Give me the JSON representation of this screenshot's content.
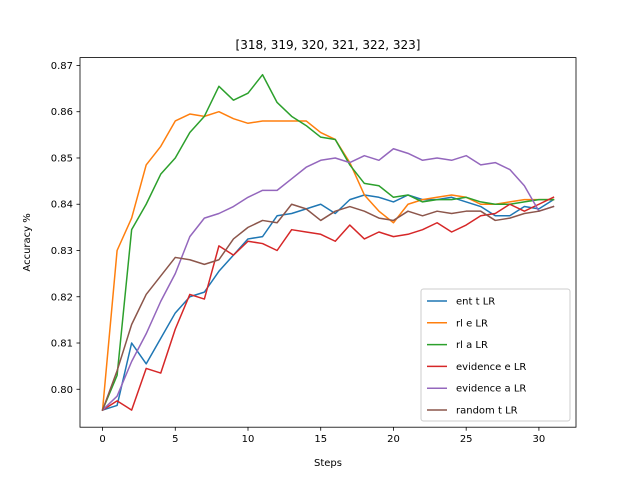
{
  "chart_data": {
    "type": "line",
    "title": "[318, 319, 320, 321, 322, 323]",
    "xlabel": "Steps",
    "ylabel": "Accuracy %",
    "xlim": [
      -1.55,
      32.55
    ],
    "ylim": [
      0.7918,
      0.8717
    ],
    "xticks": [
      0,
      5,
      10,
      15,
      20,
      25,
      30
    ],
    "yticks": [
      0.8,
      0.81,
      0.82,
      0.83,
      0.84,
      0.85,
      0.86,
      0.87
    ],
    "ytick_labels": [
      "0.80",
      "0.81",
      "0.82",
      "0.83",
      "0.84",
      "0.85",
      "0.86",
      "0.87"
    ],
    "grid": false,
    "legend_position": "lower right",
    "x": [
      0,
      1,
      2,
      3,
      4,
      5,
      6,
      7,
      8,
      9,
      10,
      11,
      12,
      13,
      14,
      15,
      16,
      17,
      18,
      19,
      20,
      21,
      22,
      23,
      24,
      25,
      26,
      27,
      28,
      29,
      30,
      31
    ],
    "series": [
      {
        "name": "ent t LR",
        "color": "#1f77b4",
        "values": [
          0.7955,
          0.7965,
          0.81,
          0.8055,
          0.811,
          0.8165,
          0.82,
          0.821,
          0.8255,
          0.829,
          0.8325,
          0.833,
          0.8375,
          0.838,
          0.839,
          0.84,
          0.838,
          0.841,
          0.842,
          0.8415,
          0.8405,
          0.842,
          0.841,
          0.841,
          0.8415,
          0.8405,
          0.8395,
          0.8375,
          0.8375,
          0.8395,
          0.839,
          0.841
        ]
      },
      {
        "name": "rl e LR",
        "color": "#ff7f0e",
        "values": [
          0.7955,
          0.83,
          0.837,
          0.8485,
          0.8525,
          0.858,
          0.8595,
          0.859,
          0.86,
          0.8585,
          0.8575,
          0.858,
          0.858,
          0.858,
          0.858,
          0.8555,
          0.854,
          0.849,
          0.842,
          0.8385,
          0.836,
          0.84,
          0.841,
          0.8415,
          0.842,
          0.8415,
          0.84,
          0.84,
          0.8405,
          0.841,
          0.841,
          0.841
        ]
      },
      {
        "name": "rl a LR",
        "color": "#2ca02c",
        "values": [
          0.7955,
          0.803,
          0.8345,
          0.84,
          0.8465,
          0.85,
          0.8555,
          0.859,
          0.8655,
          0.8625,
          0.864,
          0.868,
          0.862,
          0.859,
          0.857,
          0.8545,
          0.854,
          0.8485,
          0.8445,
          0.844,
          0.8415,
          0.842,
          0.8405,
          0.841,
          0.841,
          0.8415,
          0.8405,
          0.84,
          0.84,
          0.8405,
          0.841,
          0.841
        ]
      },
      {
        "name": "evidence e LR",
        "color": "#d62728",
        "values": [
          0.7955,
          0.7975,
          0.7955,
          0.8045,
          0.8035,
          0.813,
          0.8205,
          0.8195,
          0.831,
          0.829,
          0.832,
          0.8315,
          0.83,
          0.8345,
          0.834,
          0.8335,
          0.832,
          0.8355,
          0.8325,
          0.834,
          0.833,
          0.8335,
          0.8345,
          0.836,
          0.834,
          0.8355,
          0.8375,
          0.838,
          0.84,
          0.8385,
          0.84,
          0.8415
        ]
      },
      {
        "name": "evidence a LR",
        "color": "#9467bd",
        "values": [
          0.7955,
          0.7985,
          0.806,
          0.812,
          0.819,
          0.825,
          0.833,
          0.837,
          0.838,
          0.8395,
          0.8415,
          0.843,
          0.843,
          0.8455,
          0.848,
          0.8495,
          0.85,
          0.849,
          0.8505,
          0.8495,
          0.852,
          0.851,
          0.8495,
          0.85,
          0.8495,
          0.8505,
          0.8485,
          0.849,
          0.8475,
          0.844,
          0.8385,
          0.8395
        ]
      },
      {
        "name": "random t LR",
        "color": "#8c564b",
        "values": [
          0.7955,
          0.804,
          0.814,
          0.8205,
          0.8245,
          0.8285,
          0.828,
          0.827,
          0.828,
          0.8325,
          0.835,
          0.8365,
          0.836,
          0.84,
          0.839,
          0.8365,
          0.8385,
          0.8395,
          0.8385,
          0.837,
          0.8365,
          0.8385,
          0.8375,
          0.8385,
          0.838,
          0.8385,
          0.8385,
          0.8365,
          0.837,
          0.838,
          0.8385,
          0.8395
        ]
      }
    ]
  }
}
